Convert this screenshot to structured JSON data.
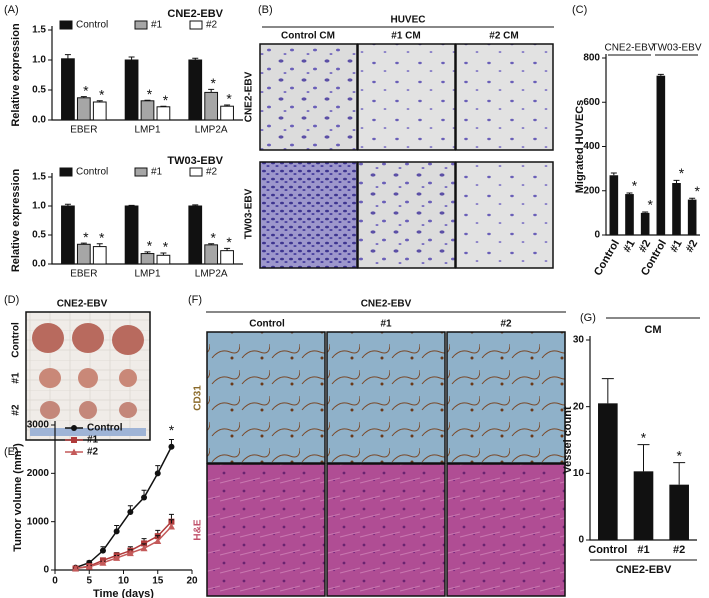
{
  "panel_labels": [
    "(A)",
    "(B)",
    "(C)",
    "(D)",
    "(E)",
    "(F)",
    "(G)"
  ],
  "panel_b": {
    "title": "HUVEC",
    "columns": [
      "Control CM",
      "#1 CM",
      "#2 CM"
    ],
    "rows": [
      "CNE2-EBV",
      "TW03-EBV"
    ]
  },
  "panel_d": {
    "title": "CNE2-EBV",
    "rows": [
      "Control",
      "#1",
      "#2"
    ]
  },
  "panel_f": {
    "title": "CNE2-EBV",
    "columns": [
      "Control",
      "#1",
      "#2"
    ],
    "rows": [
      "CD31",
      "H&E"
    ]
  },
  "chart_data": [
    {
      "type": "bar",
      "title": "CNE2-EBV",
      "ylabel": "Relative expression",
      "categories": [
        "EBER",
        "LMP1",
        "LMP2A"
      ],
      "series": [
        {
          "name": "Control",
          "color": "#111111",
          "values": [
            1.02,
            1.0,
            1.0
          ],
          "errors": [
            0.07,
            0.05,
            0.03
          ]
        },
        {
          "name": "#1",
          "color": "#a6a6a6",
          "values": [
            0.37,
            0.32,
            0.46
          ],
          "errors": [
            0.02,
            0.01,
            0.05
          ],
          "annotations": [
            "*",
            "*",
            "*"
          ]
        },
        {
          "name": "#2",
          "color": "#ffffff",
          "values": [
            0.3,
            0.22,
            0.23
          ],
          "errors": [
            0.02,
            0.01,
            0.02
          ],
          "annotations": [
            "*",
            "*",
            "*"
          ]
        }
      ],
      "ylim": [
        0,
        1.5
      ],
      "yticks": [
        {
          "value": 0,
          "label": "0.0"
        },
        {
          "value": 0.5,
          "label": "0.5"
        },
        {
          "value": 1,
          "label": "1.0"
        },
        {
          "value": 1.5,
          "label": "1.5"
        }
      ],
      "legend": "top"
    },
    {
      "type": "bar",
      "title": "TW03-EBV",
      "ylabel": "Relative expression",
      "categories": [
        "EBER",
        "LMP1",
        "LMP2A"
      ],
      "series": [
        {
          "name": "Control",
          "color": "#111111",
          "values": [
            1.0,
            1.0,
            1.0
          ],
          "errors": [
            0.03,
            0.01,
            0.02
          ]
        },
        {
          "name": "#1",
          "color": "#a6a6a6",
          "values": [
            0.34,
            0.18,
            0.33
          ],
          "errors": [
            0.02,
            0.03,
            0.02
          ],
          "annotations": [
            "*",
            "*",
            "*"
          ]
        },
        {
          "name": "#2",
          "color": "#ffffff",
          "values": [
            0.3,
            0.15,
            0.23
          ],
          "errors": [
            0.05,
            0.04,
            0.04
          ],
          "annotations": [
            "*",
            "*",
            "*"
          ]
        }
      ],
      "ylim": [
        0,
        1.5
      ],
      "yticks": [
        {
          "value": 0,
          "label": "0.0"
        },
        {
          "value": 0.5,
          "label": "0.5"
        },
        {
          "value": 1,
          "label": "1.0"
        },
        {
          "value": 1.5,
          "label": "1.5"
        }
      ],
      "legend": "top"
    },
    {
      "type": "bar",
      "ylabel": "Migrated HUVECs",
      "xlabel": "CM",
      "groups": [
        "CNE2-EBV",
        "TW03-EBV"
      ],
      "categories": [
        "Control",
        "#1",
        "#2",
        "Control",
        "#1",
        "#2"
      ],
      "values": [
        270,
        185,
        100,
        720,
        235,
        160
      ],
      "errors": [
        10,
        5,
        4,
        6,
        12,
        6
      ],
      "annotations": [
        null,
        "*",
        "*",
        null,
        "*",
        "*"
      ],
      "color": "#111111",
      "ylim": [
        0,
        800
      ],
      "yticks": [
        0,
        200,
        400,
        600,
        800
      ]
    },
    {
      "type": "line",
      "xlabel": "Time (days)",
      "ylabel": "Tumor volume (mm³)",
      "x": [
        3,
        5,
        7,
        9,
        11,
        13,
        15,
        17
      ],
      "series": [
        {
          "name": "Control",
          "color": "#111111",
          "marker": "circle",
          "values": [
            50,
            150,
            400,
            800,
            1200,
            1500,
            2000,
            2550
          ],
          "errors": [
            20,
            40,
            80,
            120,
            130,
            150,
            160,
            150
          ]
        },
        {
          "name": "#1",
          "color": "#b03a3a",
          "marker": "square",
          "values": [
            30,
            80,
            200,
            300,
            400,
            550,
            700,
            1000
          ],
          "errors": [
            10,
            20,
            40,
            60,
            80,
            100,
            120,
            150
          ]
        },
        {
          "name": "#2",
          "color": "#c45a5a",
          "marker": "triangle",
          "values": [
            30,
            70,
            150,
            250,
            350,
            450,
            600,
            900
          ],
          "errors": [
            10,
            20,
            30,
            50,
            70,
            90,
            110,
            140
          ]
        }
      ],
      "annotation": "*",
      "xlim": [
        0,
        20
      ],
      "xticks": [
        0,
        5,
        10,
        15,
        20
      ],
      "ylim": [
        0,
        3000
      ],
      "yticks": [
        0,
        1000,
        2000,
        3000
      ],
      "legend": "top-left"
    },
    {
      "type": "bar",
      "ylabel": "Vessel count",
      "xlabel": "CNE2-EBV",
      "categories": [
        "Control",
        "#1",
        "#2"
      ],
      "values": [
        20.5,
        10.3,
        8.3
      ],
      "errors": [
        3.7,
        4.0,
        3.3
      ],
      "annotations": [
        null,
        "*",
        "*"
      ],
      "color": "#111111",
      "ylim": [
        0,
        30
      ],
      "yticks": [
        0,
        10,
        20,
        30
      ]
    }
  ]
}
